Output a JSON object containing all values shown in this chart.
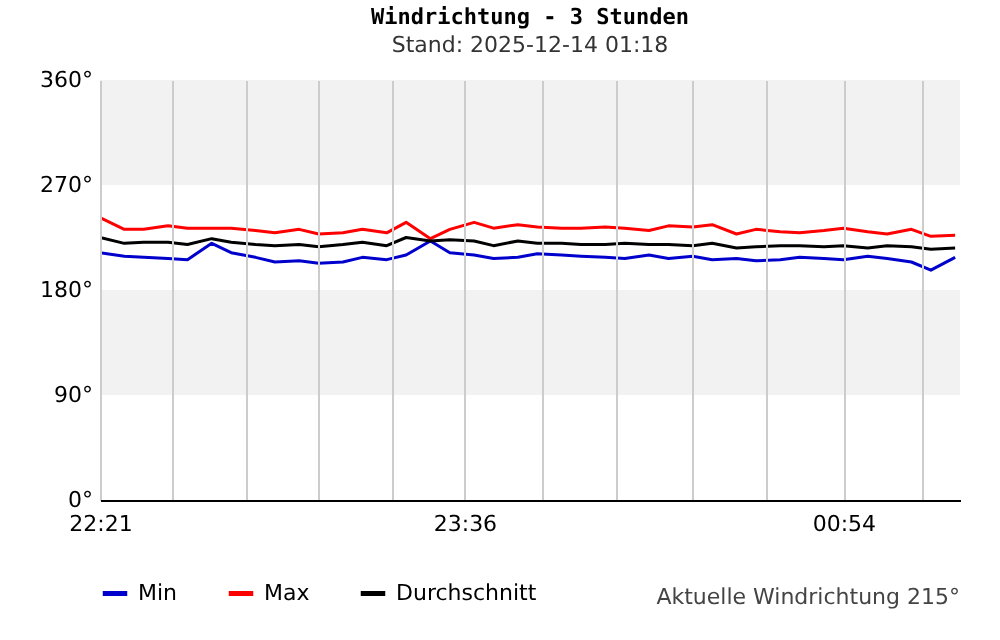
{
  "chart_data": {
    "type": "line",
    "title": "Windrichtung - 3 Stunden",
    "subtitle": "Stand: 2025-12-14 01:18",
    "annotations": [
      "Aktuelle Windrichtung 215°"
    ],
    "x": [
      "2025-12-13T22:21",
      "2025-12-13T22:26",
      "2025-12-13T22:30",
      "2025-12-13T22:35",
      "2025-12-13T22:39",
      "2025-12-13T22:44",
      "2025-12-13T22:48",
      "2025-12-13T22:53",
      "2025-12-13T22:57",
      "2025-12-13T23:02",
      "2025-12-13T23:06",
      "2025-12-13T23:11",
      "2025-12-13T23:15",
      "2025-12-13T23:20",
      "2025-12-13T23:24",
      "2025-12-13T23:29",
      "2025-12-13T23:33",
      "2025-12-13T23:38",
      "2025-12-13T23:42",
      "2025-12-13T23:47",
      "2025-12-13T23:51",
      "2025-12-13T23:56",
      "2025-12-14T00:00",
      "2025-12-14T00:05",
      "2025-12-14T00:09",
      "2025-12-14T00:14",
      "2025-12-14T00:18",
      "2025-12-14T00:23",
      "2025-12-14T00:27",
      "2025-12-14T00:32",
      "2025-12-14T00:36",
      "2025-12-14T00:41",
      "2025-12-14T00:45",
      "2025-12-14T00:50",
      "2025-12-14T00:54",
      "2025-12-14T00:59",
      "2025-12-14T01:03",
      "2025-12-14T01:08",
      "2025-12-14T01:12",
      "2025-12-14T01:17"
    ],
    "series": [
      {
        "name": "Min",
        "color": "#0000cc",
        "values": [
          212,
          209,
          208,
          207,
          206,
          220,
          212,
          208,
          204,
          205,
          203,
          204,
          208,
          206,
          210,
          222,
          212,
          210,
          207,
          208,
          211,
          210,
          209,
          208,
          207,
          210,
          207,
          209,
          206,
          207,
          205,
          206,
          208,
          207,
          206,
          209,
          207,
          204,
          197,
          208
        ]
      },
      {
        "name": "Max",
        "color": "#ff0000",
        "values": [
          242,
          232,
          232,
          235,
          233,
          233,
          233,
          231,
          229,
          232,
          228,
          229,
          232,
          229,
          238,
          224,
          232,
          238,
          233,
          236,
          234,
          233,
          233,
          234,
          233,
          231,
          235,
          234,
          236,
          228,
          232,
          230,
          229,
          231,
          233,
          230,
          228,
          232,
          226,
          227
        ]
      },
      {
        "name": "Durchschnitt",
        "color": "#000000",
        "values": [
          225,
          220,
          221,
          221,
          219,
          224,
          221,
          219,
          218,
          219,
          217,
          219,
          221,
          218,
          225,
          222,
          223,
          222,
          218,
          222,
          220,
          220,
          219,
          219,
          220,
          219,
          219,
          218,
          220,
          216,
          217,
          218,
          218,
          217,
          218,
          216,
          218,
          217,
          215,
          216
        ]
      }
    ],
    "xlim": [
      "2025-12-13T22:21",
      "2025-12-14T01:18"
    ],
    "xticks": [
      {
        "value": "2025-12-13T22:21",
        "label": "22:21"
      },
      {
        "value": "2025-12-13T22:36",
        "label": null
      },
      {
        "value": "2025-12-13T22:51",
        "label": null
      },
      {
        "value": "2025-12-13T23:06",
        "label": null
      },
      {
        "value": "2025-12-13T23:21",
        "label": null
      },
      {
        "value": "2025-12-13T23:36",
        "label": "23:36"
      },
      {
        "value": "2025-12-13T23:52",
        "label": null
      },
      {
        "value": "2025-12-14T00:07",
        "label": null
      },
      {
        "value": "2025-12-14T00:23",
        "label": null
      },
      {
        "value": "2025-12-14T00:38",
        "label": null
      },
      {
        "value": "2025-12-14T00:54",
        "label": "00:54"
      },
      {
        "value": "2025-12-14T01:10",
        "label": null
      }
    ],
    "ylim": [
      0,
      360
    ],
    "yticks": [
      {
        "value": 0,
        "label": "0°"
      },
      {
        "value": 90,
        "label": "90°"
      },
      {
        "value": 180,
        "label": "180°"
      },
      {
        "value": 270,
        "label": "270°"
      },
      {
        "value": 360,
        "label": "360°"
      }
    ],
    "bands": [
      {
        "axis": "y",
        "from": 90,
        "to": 180,
        "color": "#f2f2f2"
      },
      {
        "axis": "y",
        "from": 270,
        "to": 360,
        "color": "#f2f2f2"
      }
    ],
    "grid": "x",
    "legend": "bottom",
    "marker": "none",
    "line_style": "solid"
  }
}
